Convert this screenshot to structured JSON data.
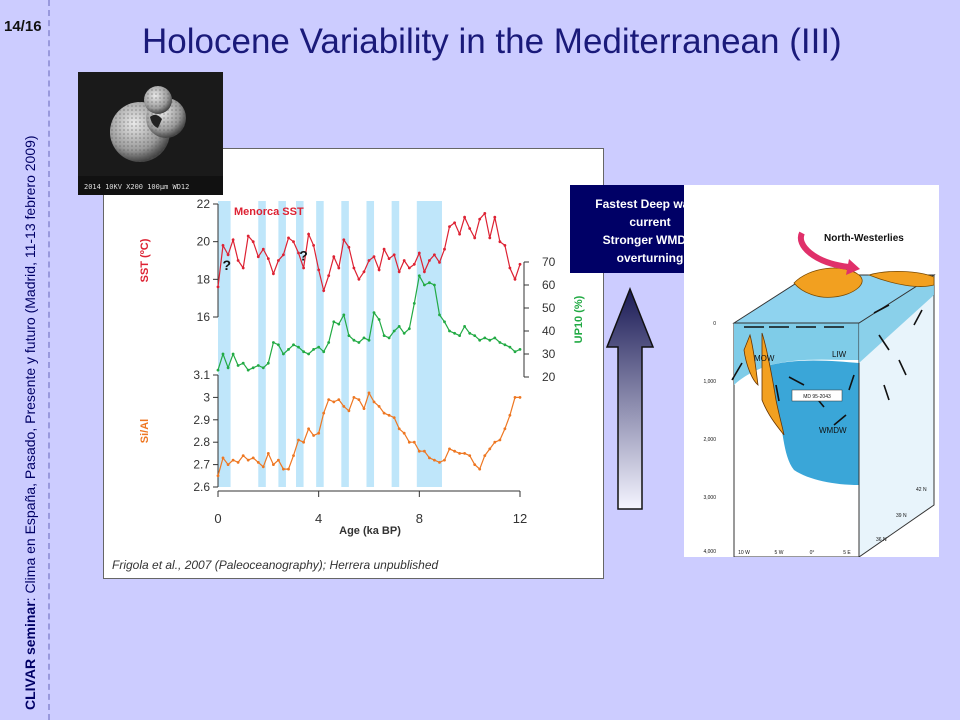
{
  "slide": {
    "page_number": "14/16",
    "seminar_bold": "CLIVAR seminar",
    "seminar_rest": ": Clima en España, Pasado, Presente y futuro (Madrid, 11-13 febrero 2009)",
    "title": "Holocene Variability in the Mediterranean (III)"
  },
  "foram": {
    "scale_text": "2014 10KV X200 100µm WD12"
  },
  "callout": {
    "line1": "Fastest Deep water",
    "line2": "current",
    "line3": "Stronger WMDW",
    "line4": "overturning"
  },
  "chart_data": {
    "type": "line",
    "xlabel": "Age (ka BP)",
    "x_ticks": [
      "0",
      "4",
      "8",
      "12"
    ],
    "xlim": [
      0,
      12
    ],
    "citation": "Frigola et al., 2007 (Paleoceanography);  Herrera unpublished",
    "sst": {
      "name": "Menorca SST",
      "ylabel": "SST (ºC)",
      "ylim": [
        16,
        22
      ],
      "ticks": [
        "22",
        "20",
        "18",
        "16"
      ],
      "color": "#dd2233",
      "x": [
        0.0,
        0.2,
        0.4,
        0.6,
        0.8,
        1.0,
        1.2,
        1.4,
        1.6,
        1.8,
        2.0,
        2.2,
        2.4,
        2.6,
        2.8,
        3.0,
        3.2,
        3.4,
        3.6,
        3.8,
        4.0,
        4.2,
        4.4,
        4.6,
        4.8,
        5.0,
        5.2,
        5.4,
        5.6,
        5.8,
        6.0,
        6.2,
        6.4,
        6.6,
        6.8,
        7.0,
        7.2,
        7.4,
        7.6,
        7.8,
        8.0,
        8.2,
        8.4,
        8.6,
        8.8,
        9.0,
        9.2,
        9.4,
        9.6,
        9.8,
        10.0,
        10.2,
        10.4,
        10.6,
        10.8,
        11.0,
        11.2,
        11.4,
        11.6,
        11.8,
        12.0
      ],
      "y": [
        17.6,
        19.8,
        19.3,
        20.1,
        19.0,
        18.6,
        20.3,
        20.0,
        19.2,
        19.6,
        19.1,
        18.3,
        19.0,
        19.3,
        20.2,
        20.0,
        19.4,
        18.6,
        20.4,
        19.8,
        18.5,
        17.4,
        18.2,
        19.2,
        18.6,
        20.1,
        19.7,
        18.6,
        18.0,
        18.4,
        19.0,
        19.2,
        18.5,
        19.6,
        19.1,
        19.3,
        18.4,
        19.0,
        18.6,
        18.8,
        19.4,
        18.4,
        19.0,
        19.3,
        18.9,
        19.6,
        20.8,
        21.0,
        20.4,
        21.3,
        20.7,
        20.2,
        21.2,
        21.5,
        20.2,
        21.3,
        20.0,
        19.8,
        18.6,
        18.0,
        18.8
      ]
    },
    "up10": {
      "ylabel": "UP10 (%)",
      "ylim": [
        20,
        70
      ],
      "ticks": [
        "70",
        "60",
        "50",
        "40",
        "30",
        "20"
      ],
      "color": "#22aa44",
      "x": [
        0.0,
        0.2,
        0.4,
        0.6,
        0.8,
        1.0,
        1.2,
        1.4,
        1.6,
        1.8,
        2.0,
        2.2,
        2.4,
        2.6,
        2.8,
        3.0,
        3.2,
        3.4,
        3.6,
        3.8,
        4.0,
        4.2,
        4.4,
        4.6,
        4.8,
        5.0,
        5.2,
        5.4,
        5.6,
        5.8,
        6.0,
        6.2,
        6.4,
        6.6,
        6.8,
        7.0,
        7.2,
        7.4,
        7.6,
        7.8,
        8.0,
        8.2,
        8.4,
        8.6,
        8.8,
        9.0,
        9.2,
        9.4,
        9.6,
        9.8,
        10.0,
        10.2,
        10.4,
        10.6,
        10.8,
        11.0,
        11.2,
        11.4,
        11.6,
        11.8,
        12.0
      ],
      "y": [
        23,
        30,
        24,
        30,
        25,
        26,
        23,
        24,
        25,
        24,
        26,
        35,
        34,
        30,
        32,
        34,
        33,
        31,
        30,
        32,
        33,
        31,
        35,
        44,
        43,
        47,
        38,
        36,
        35,
        37,
        36,
        48,
        45,
        38,
        37,
        40,
        42,
        39,
        41,
        52,
        64,
        60,
        61,
        60,
        47,
        44,
        40,
        39,
        38,
        42,
        39,
        38,
        36,
        37,
        36,
        37,
        35,
        34,
        33,
        31,
        32
      ]
    },
    "siai": {
      "ylabel": "Si/Al",
      "ylim": [
        2.6,
        3.1
      ],
      "ticks": [
        "3.1",
        "3",
        "2.9",
        "2.8",
        "2.7",
        "2.6"
      ],
      "color": "#ee7722",
      "x": [
        0.0,
        0.2,
        0.4,
        0.6,
        0.8,
        1.0,
        1.2,
        1.4,
        1.6,
        1.8,
        2.0,
        2.2,
        2.4,
        2.6,
        2.8,
        3.0,
        3.2,
        3.4,
        3.6,
        3.8,
        4.0,
        4.2,
        4.4,
        4.6,
        4.8,
        5.0,
        5.2,
        5.4,
        5.6,
        5.8,
        6.0,
        6.2,
        6.4,
        6.6,
        6.8,
        7.0,
        7.2,
        7.4,
        7.6,
        7.8,
        8.0,
        8.2,
        8.4,
        8.6,
        8.8,
        9.0,
        9.2,
        9.4,
        9.6,
        9.8,
        10.0,
        10.2,
        10.4,
        10.6,
        10.8,
        11.0,
        11.2,
        11.4,
        11.6,
        11.8,
        12.0
      ],
      "y": [
        2.65,
        2.73,
        2.7,
        2.72,
        2.71,
        2.74,
        2.72,
        2.73,
        2.71,
        2.69,
        2.75,
        2.7,
        2.72,
        2.68,
        2.68,
        2.74,
        2.81,
        2.8,
        2.86,
        2.83,
        2.84,
        2.93,
        2.99,
        2.98,
        2.99,
        2.96,
        2.94,
        3.0,
        2.99,
        2.95,
        3.02,
        2.98,
        2.96,
        2.93,
        2.92,
        2.91,
        2.86,
        2.84,
        2.8,
        2.8,
        2.76,
        2.76,
        2.73,
        2.72,
        2.71,
        2.72,
        2.77,
        2.76,
        2.75,
        2.75,
        2.74,
        2.7,
        2.68,
        2.74,
        2.77,
        2.8,
        2.81,
        2.86,
        2.92,
        3.0,
        3.0
      ]
    },
    "shaded_bands_ka": [
      [
        0.0,
        0.5
      ],
      [
        1.6,
        1.9
      ],
      [
        2.4,
        2.7
      ],
      [
        3.1,
        3.4
      ],
      [
        3.9,
        4.2
      ],
      [
        4.9,
        5.2
      ],
      [
        5.9,
        6.2
      ],
      [
        6.9,
        7.2
      ],
      [
        7.9,
        8.9
      ]
    ],
    "question_marks": [
      {
        "text": "?",
        "x": 0.35,
        "y": 18.5
      },
      {
        "text": "?",
        "x": 3.4,
        "y": 19.0
      }
    ]
  },
  "diagram": {
    "wind_label": "North-Westerlies",
    "labels": {
      "mow": "MOW",
      "liw": "LIW",
      "wmdw": "WMDW",
      "core": "MD 95-2043"
    },
    "depths": [
      "0",
      "1,000",
      "2,000",
      "3,000",
      "4,000"
    ],
    "lons": [
      "10 W",
      "5 W",
      "0°",
      "5 E"
    ],
    "lats": [
      "42 N",
      "39 N",
      "36 N"
    ],
    "colors": {
      "surface": "#7fcce8",
      "deep": "#3aa6d8",
      "land": "#f2a020"
    }
  }
}
